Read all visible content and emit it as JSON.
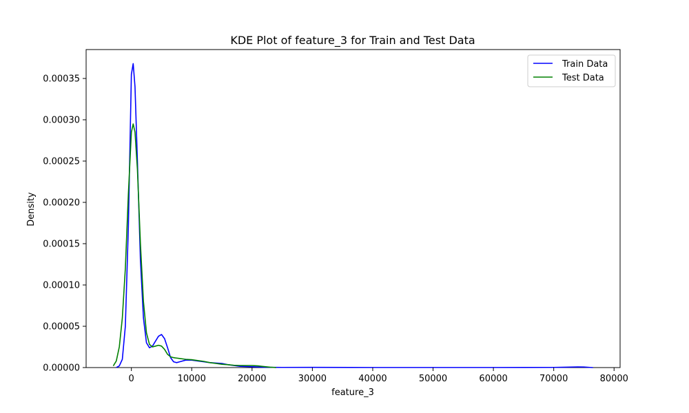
{
  "chart_data": {
    "type": "line",
    "title": "KDE Plot of feature_3 for Train and Test Data",
    "xlabel": "feature_3",
    "ylabel": "Density",
    "xlim": [
      -7500,
      81000
    ],
    "ylim": [
      0,
      0.000385
    ],
    "xticks": [
      0,
      10000,
      20000,
      30000,
      40000,
      50000,
      60000,
      70000,
      80000
    ],
    "xtick_labels": [
      "0",
      "10000",
      "20000",
      "30000",
      "40000",
      "50000",
      "60000",
      "70000",
      "80000"
    ],
    "yticks": [
      0,
      5e-05,
      0.0001,
      0.00015,
      0.0002,
      0.00025,
      0.0003,
      0.00035
    ],
    "ytick_labels": [
      "0.00000",
      "0.00005",
      "0.00010",
      "0.00015",
      "0.00020",
      "0.00025",
      "0.00030",
      "0.00035"
    ],
    "grid": false,
    "legend_position": "top-right",
    "series": [
      {
        "name": "Train Data",
        "color": "#0000ff",
        "x": [
          -2500,
          -2000,
          -1500,
          -1000,
          -500,
          0,
          300,
          600,
          1000,
          1500,
          2000,
          2500,
          3000,
          3500,
          4000,
          4500,
          5000,
          5500,
          6000,
          6500,
          7000,
          7500,
          8000,
          9000,
          10000,
          11000,
          12000,
          13000,
          14000,
          15000,
          16000,
          18000,
          20000,
          22000,
          25000,
          30000,
          40000,
          50000,
          60000,
          70000,
          72000,
          74000,
          75000,
          76000,
          76500
        ],
        "y": [
          0.0,
          2e-06,
          1e-05,
          5e-05,
          0.00017,
          0.000355,
          0.000368,
          0.00034,
          0.00025,
          0.00013,
          6e-05,
          3e-05,
          2.4e-05,
          2.6e-05,
          3.2e-05,
          3.8e-05,
          4e-05,
          3.5e-05,
          2.4e-05,
          1.2e-05,
          7e-06,
          6e-06,
          7e-06,
          9e-06,
          9e-06,
          8e-06,
          7e-06,
          6e-06,
          5.5e-06,
          5e-06,
          3.5e-06,
          1.5e-06,
          1e-06,
          4e-07,
          2e-07,
          3e-07,
          1e-07,
          1e-07,
          1e-07,
          2e-07,
          5e-07,
          8e-07,
          7e-07,
          2e-07,
          0.0
        ]
      },
      {
        "name": "Test Data",
        "color": "#008000",
        "x": [
          -3000,
          -2500,
          -2000,
          -1500,
          -1000,
          -500,
          0,
          300,
          600,
          1000,
          1500,
          2000,
          2500,
          3000,
          3500,
          4000,
          4500,
          5000,
          5500,
          6000,
          6500,
          7000,
          8000,
          9000,
          10000,
          11000,
          12000,
          13000,
          14000,
          15000,
          16000,
          17000,
          18000,
          20000,
          21000,
          22000,
          23000,
          24000
        ],
        "y": [
          2e-06,
          8e-06,
          2.5e-05,
          6e-05,
          0.00012,
          0.00021,
          0.000285,
          0.000295,
          0.000285,
          0.00024,
          0.00015,
          8e-05,
          4.2e-05,
          2.8e-05,
          2.5e-05,
          2.6e-05,
          2.7e-05,
          2.6e-05,
          2.2e-05,
          1.6e-05,
          1.3e-05,
          1.2e-05,
          1.1e-05,
          1e-05,
          9.5e-06,
          8.5e-06,
          7.5e-06,
          6e-06,
          5e-06,
          4e-06,
          3.5e-06,
          2.8e-06,
          2.5e-06,
          2.5e-06,
          2e-06,
          1.2e-06,
          5e-07,
          0.0
        ]
      }
    ]
  }
}
